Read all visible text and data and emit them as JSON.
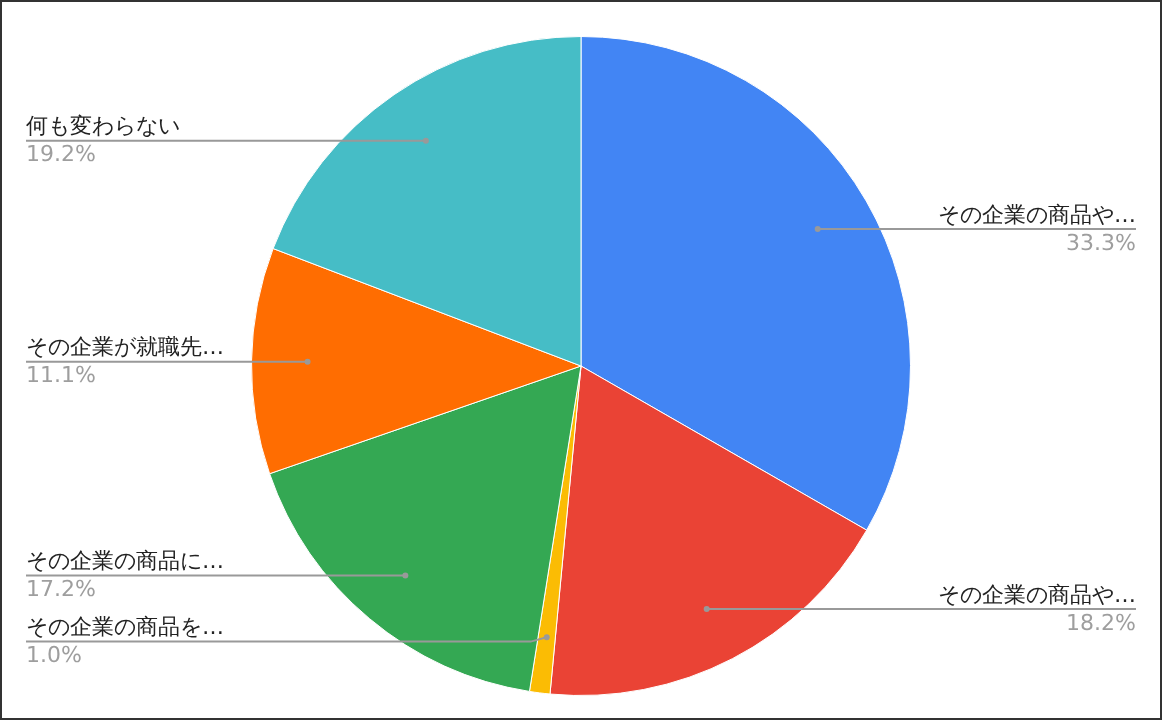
{
  "chart_data": {
    "type": "pie",
    "categories": [
      "その企業の商品や…",
      "その企業の商品や…",
      "その企業の商品を…",
      "その企業の商品に…",
      "その企業が就職先…",
      "何も変わらない"
    ],
    "values": [
      33.3,
      18.2,
      1.0,
      17.2,
      11.1,
      19.2
    ],
    "value_labels": [
      "33.3%",
      "18.2%",
      "1.0%",
      "17.2%",
      "11.1%",
      "19.2%"
    ],
    "colors": [
      "#4285f4",
      "#ea4335",
      "#fbbc04",
      "#34a853",
      "#ff6d01",
      "#46bdc6"
    ],
    "legend": false
  }
}
